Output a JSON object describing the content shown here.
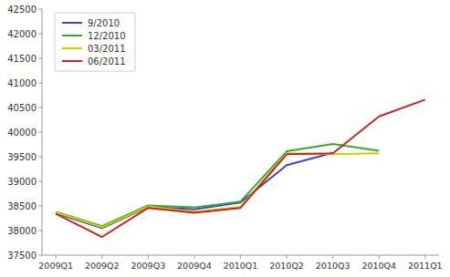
{
  "chart_data": {
    "type": "line",
    "categories": [
      "2009Q1",
      "2009Q2",
      "2009Q3",
      "2009Q4",
      "2010Q1",
      "2010Q2",
      "2010Q3",
      "2010Q4",
      "2011Q1"
    ],
    "series": [
      {
        "name": "9/2010",
        "color": "#4444bb",
        "values": [
          38350,
          38050,
          38480,
          38430,
          38570,
          39330,
          39580,
          null,
          null
        ]
      },
      {
        "name": "12/2010",
        "color": "#33aa33",
        "values": [
          38380,
          38090,
          38510,
          38470,
          38590,
          39610,
          39760,
          39620,
          null
        ]
      },
      {
        "name": "03/2011",
        "color": "#cccc00",
        "values": [
          38370,
          38070,
          38490,
          38380,
          38480,
          39570,
          39550,
          39570,
          null
        ]
      },
      {
        "name": "06/2011",
        "color": "#cc2222",
        "values": [
          38340,
          37870,
          38460,
          38360,
          38460,
          39550,
          39570,
          40320,
          40660
        ]
      }
    ],
    "ylim": [
      37500,
      42500
    ],
    "yticks": [
      37500,
      38000,
      38500,
      39000,
      39500,
      40000,
      40500,
      41000,
      41500,
      42000,
      42500
    ],
    "grid": false,
    "legend": "upper left"
  }
}
